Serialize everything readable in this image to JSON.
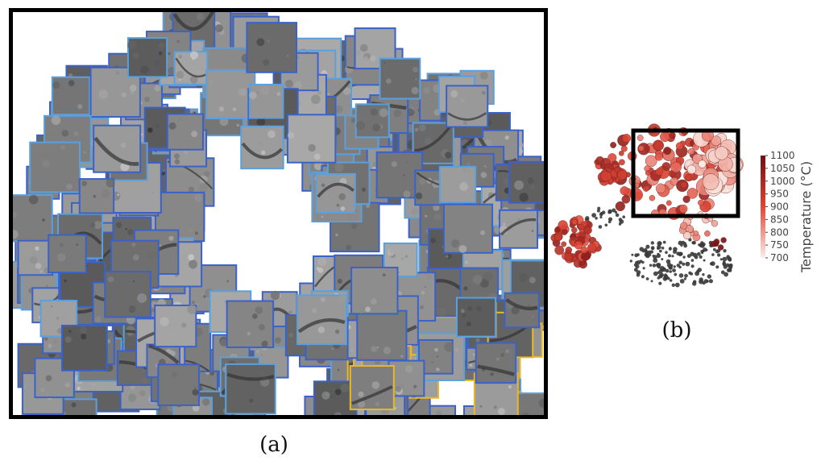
{
  "panel_a": {
    "label": "(a)",
    "tile_border_colors": {
      "default": "#3a62c8",
      "light": "#5aa0de",
      "highlight": "#e8b828"
    }
  },
  "panel_b": {
    "label": "(b)",
    "colorbar_label": "Temperature (°C)",
    "colorbar_colors": {
      "low": "#fbeee8",
      "mid": "#e04535",
      "high": "#6e0f12"
    },
    "unlabeled_color": "#3a3a3a"
  },
  "chart_data": {
    "type": "scatter",
    "colorbar": {
      "label": "Temperature (°C)",
      "min": 700,
      "max": 1100,
      "ticks": [
        1100,
        1050,
        1000,
        950,
        900,
        850,
        800,
        750,
        700
      ]
    },
    "highlight_box": true,
    "grid": false,
    "axes_visible": false
  }
}
